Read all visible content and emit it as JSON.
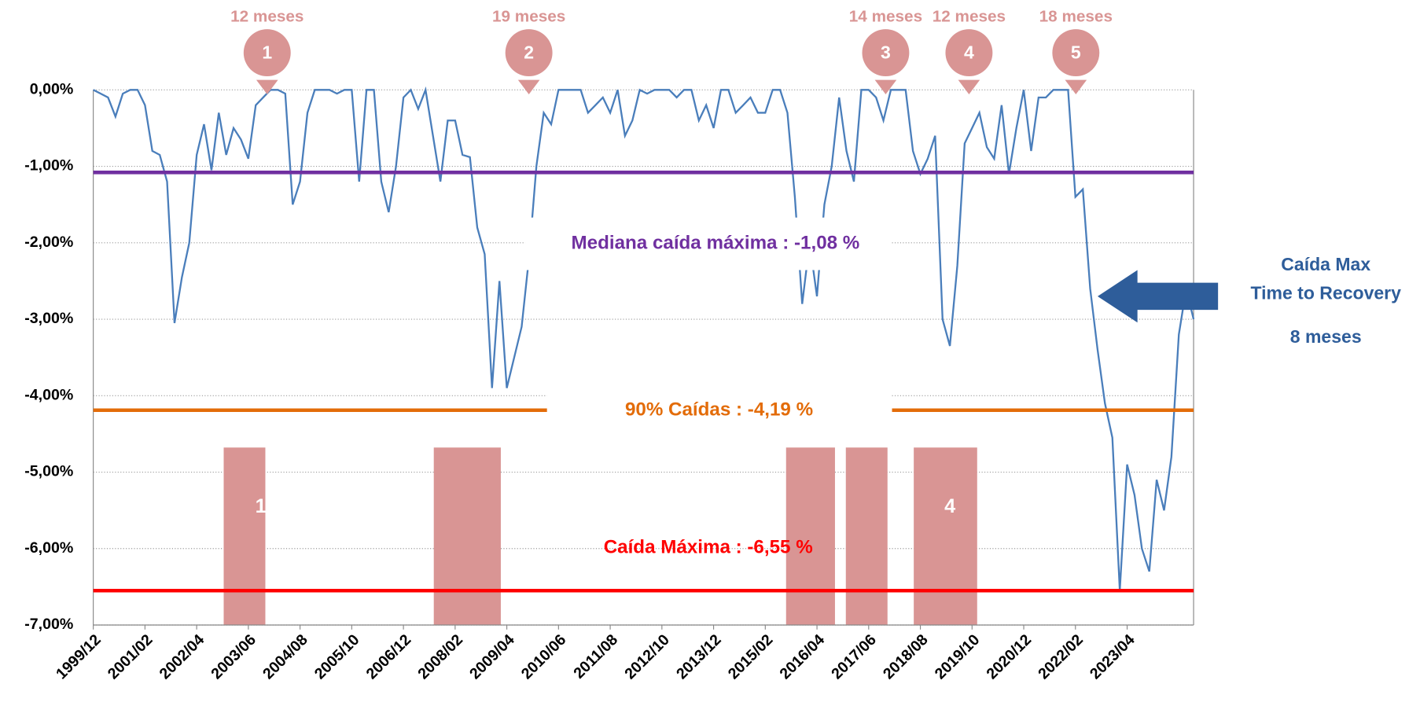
{
  "chart_data": {
    "type": "line",
    "color": "#4a7ebb",
    "categories": [
      "1999/12",
      null,
      null,
      null,
      null,
      null,
      null,
      "2001/02",
      null,
      null,
      null,
      null,
      null,
      null,
      "2002/04",
      null,
      null,
      null,
      null,
      null,
      null,
      "2003/06",
      null,
      null,
      null,
      null,
      null,
      null,
      "2004/08",
      null,
      null,
      null,
      null,
      null,
      null,
      "2005/10",
      null,
      null,
      null,
      null,
      null,
      null,
      "2006/12",
      null,
      null,
      null,
      null,
      null,
      null,
      "2008/02",
      null,
      null,
      null,
      null,
      null,
      null,
      "2009/04",
      null,
      null,
      null,
      null,
      null,
      null,
      "2010/06",
      null,
      null,
      null,
      null,
      null,
      null,
      "2011/08",
      null,
      null,
      null,
      null,
      null,
      null,
      "2012/10",
      null,
      null,
      null,
      null,
      null,
      null,
      "2013/12",
      null,
      null,
      null,
      null,
      null,
      null,
      "2015/02",
      null,
      null,
      null,
      null,
      null,
      null,
      "2016/04",
      null,
      null,
      null,
      null,
      null,
      null,
      "2017/06",
      null,
      null,
      null,
      null,
      null,
      null,
      "2018/08",
      null,
      null,
      null,
      null,
      null,
      null,
      "2019/10",
      null,
      null,
      null,
      null,
      null,
      null,
      "2020/12",
      null,
      null,
      null,
      null,
      null,
      null,
      "2022/02",
      null,
      null,
      null,
      null,
      null,
      null,
      "2023/04",
      null,
      null,
      null,
      null,
      null,
      null,
      null,
      null,
      null
    ],
    "values": [
      0,
      -0.05,
      -0.1,
      -0.35,
      -0.05,
      0,
      0,
      -0.2,
      -0.8,
      -0.85,
      -1.2,
      -3.05,
      -2.45,
      -2.0,
      -0.85,
      -0.45,
      -1.05,
      -0.3,
      -0.85,
      -0.5,
      -0.65,
      -0.9,
      -0.2,
      -0.1,
      0,
      0,
      -0.05,
      -1.5,
      -1.2,
      -0.3,
      0,
      0,
      0,
      -0.05,
      0,
      0,
      -1.2,
      0,
      0,
      -1.2,
      -1.6,
      -1.0,
      -0.1,
      0,
      -0.25,
      0,
      -0.6,
      -1.2,
      -0.4,
      -0.4,
      -0.85,
      -0.88,
      -1.8,
      -2.15,
      -3.9,
      -2.5,
      -3.9,
      -3.5,
      -3.1,
      -2.2,
      -1.0,
      -0.3,
      -0.45,
      0,
      0,
      0,
      0,
      -0.3,
      -0.2,
      -0.1,
      -0.3,
      0,
      -0.6,
      -0.4,
      0,
      -0.05,
      0,
      0,
      0,
      -0.1,
      0,
      0,
      -0.4,
      -0.2,
      -0.5,
      0,
      0,
      -0.3,
      -0.2,
      -0.1,
      -0.3,
      -0.3,
      0,
      0,
      -0.3,
      -1.4,
      -2.8,
      -2.0,
      -2.7,
      -1.5,
      -1.0,
      -0.1,
      -0.8,
      -1.2,
      0,
      0,
      -0.1,
      -0.4,
      0,
      0,
      0,
      -0.8,
      -1.1,
      -0.9,
      -0.6,
      -3.0,
      -3.35,
      -2.3,
      -0.7,
      -0.5,
      -0.3,
      -0.75,
      -0.9,
      -0.2,
      -1.1,
      -0.5,
      0,
      -0.8,
      -0.1,
      -0.1,
      0,
      0,
      0,
      -1.4,
      -1.3,
      -2.6,
      -3.4,
      -4.1,
      -4.55,
      -6.55,
      -4.9,
      -5.3,
      -6.0,
      -6.3,
      -5.1,
      -5.5,
      -4.8,
      -3.2,
      -2.6,
      -3.0
    ],
    "ylim": [
      -7,
      0
    ],
    "yticks": [
      {
        "value": 0,
        "label": "0,00%"
      },
      {
        "value": -1,
        "label": "-1,00%"
      },
      {
        "value": -2,
        "label": "-2,00%"
      },
      {
        "value": -3,
        "label": "-3,00%"
      },
      {
        "value": -4,
        "label": "-4,00%"
      },
      {
        "value": -5,
        "label": "-5,00%"
      },
      {
        "value": -6,
        "label": "-6,00%"
      },
      {
        "value": -7,
        "label": "-7,00%"
      }
    ],
    "grid": true,
    "reference_lines": [
      {
        "value": -1.08,
        "label": "Mediana caída máxima : -1,08 %",
        "color": "#7030a0"
      },
      {
        "value": -4.19,
        "label": "90% Caídas : -4,19 %",
        "color": "#e36c09"
      },
      {
        "value": -6.55,
        "label": "Caída Máxima : -6,55 %",
        "color": "#ff0000"
      }
    ],
    "markers": [
      {
        "number": "1",
        "label": "12 meses"
      },
      {
        "number": "2",
        "label": "19 meses"
      },
      {
        "number": "3",
        "label": "14 meses"
      },
      {
        "number": "4",
        "label": "12 meses"
      },
      {
        "number": "5",
        "label": "18 meses"
      }
    ],
    "side_annotation": [
      "Caída Max",
      "Time to Recovery",
      "8 meses"
    ]
  }
}
